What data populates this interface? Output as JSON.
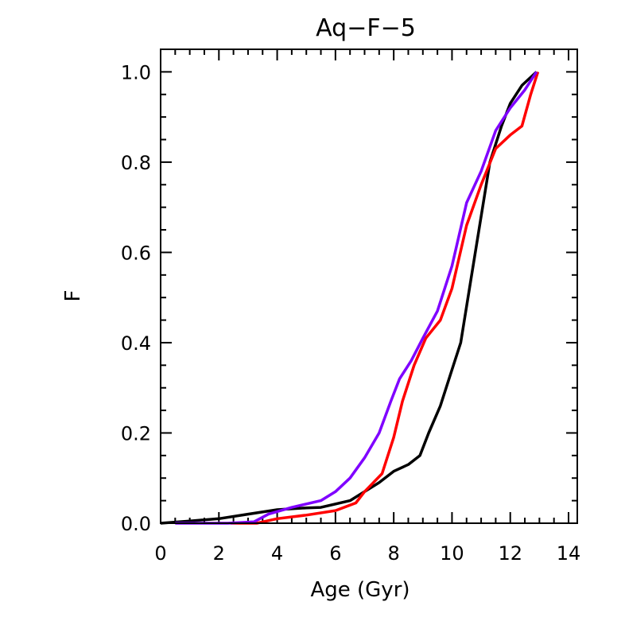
{
  "chart_data": {
    "type": "line",
    "title": "Aq−F−5",
    "xlabel": "Age (Gyr)",
    "ylabel": "F",
    "xlim": [
      0,
      14.3
    ],
    "ylim": [
      0,
      1.05
    ],
    "xticks": [
      0,
      2,
      4,
      6,
      8,
      10,
      12,
      14
    ],
    "xtick_labels": [
      "0",
      "2",
      "4",
      "6",
      "8",
      "10",
      "12",
      "14"
    ],
    "yticks": [
      0,
      0.2,
      0.4,
      0.6,
      0.8,
      1.0
    ],
    "ytick_labels": [
      "0.0",
      "0.2",
      "0.4",
      "0.6",
      "0.8",
      "1.0"
    ],
    "grid": false,
    "series": [
      {
        "color": "#000000",
        "x": [
          0,
          1,
          2,
          3,
          4,
          5,
          5.5,
          6.5,
          7,
          7.5,
          8,
          8.5,
          8.9,
          9.2,
          9.6,
          10,
          10.3,
          10.6,
          11,
          11.3,
          11.7,
          12,
          12.4,
          12.9
        ],
        "y": [
          0,
          0.005,
          0.01,
          0.02,
          0.03,
          0.034,
          0.035,
          0.05,
          0.07,
          0.09,
          0.115,
          0.13,
          0.15,
          0.2,
          0.26,
          0.34,
          0.4,
          0.52,
          0.68,
          0.8,
          0.88,
          0.93,
          0.97,
          1.0
        ]
      },
      {
        "color": "#ff0000",
        "x": [
          2.4,
          3.3,
          4,
          5,
          6,
          6.7,
          7,
          7.6,
          8,
          8.3,
          8.7,
          9.1,
          9.6,
          10,
          10.5,
          11,
          11.5,
          12,
          12.4,
          12.7,
          12.95
        ],
        "y": [
          0,
          0,
          0.01,
          0.018,
          0.028,
          0.045,
          0.07,
          0.11,
          0.19,
          0.27,
          0.35,
          0.41,
          0.45,
          0.52,
          0.66,
          0.75,
          0.83,
          0.86,
          0.88,
          0.95,
          1.0
        ]
      },
      {
        "color": "#7f00ff",
        "x": [
          0.5,
          2.3,
          3.2,
          3.7,
          4.5,
          5.5,
          6,
          6.5,
          7,
          7.5,
          7.9,
          8.2,
          8.6,
          9,
          9.5,
          10,
          10.5,
          11,
          11.5,
          12,
          12.5,
          12.9
        ],
        "y": [
          0,
          0,
          0.003,
          0.02,
          0.035,
          0.05,
          0.07,
          0.1,
          0.145,
          0.2,
          0.27,
          0.32,
          0.36,
          0.41,
          0.47,
          0.57,
          0.71,
          0.78,
          0.87,
          0.92,
          0.96,
          1.0
        ]
      }
    ]
  }
}
